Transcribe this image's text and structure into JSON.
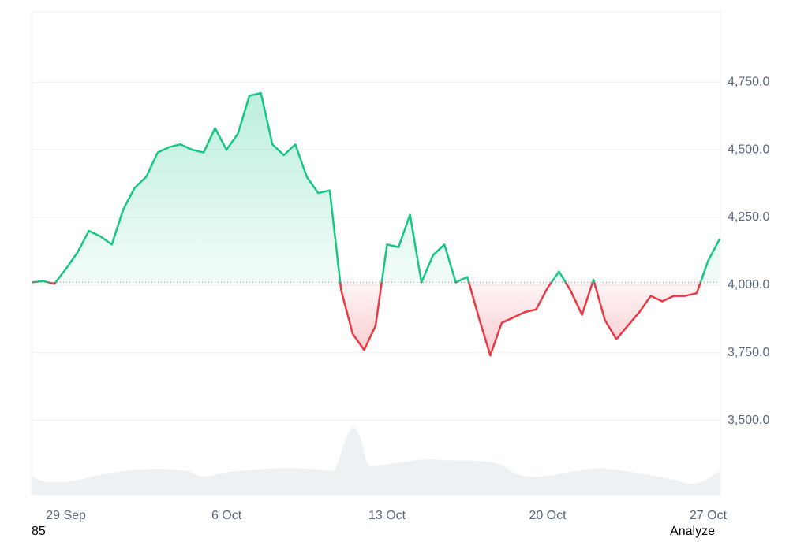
{
  "chart_data": {
    "type": "line",
    "categories": [
      null,
      null,
      null,
      "29 Sep",
      null,
      null,
      null,
      null,
      null,
      null,
      null,
      null,
      null,
      null,
      null,
      null,
      null,
      "6 Oct",
      null,
      null,
      null,
      null,
      null,
      null,
      null,
      null,
      null,
      null,
      null,
      null,
      null,
      "13 Oct",
      null,
      null,
      null,
      null,
      null,
      null,
      null,
      null,
      null,
      null,
      null,
      null,
      null,
      "20 Oct",
      null,
      null,
      null,
      null,
      null,
      null,
      null,
      null,
      null,
      null,
      null,
      null,
      null,
      "27 Oct",
      null
    ],
    "values": [
      4010,
      4015,
      4005,
      4060,
      4120,
      4200,
      4180,
      4150,
      4280,
      4360,
      4400,
      4490,
      4510,
      4520,
      4500,
      4490,
      4580,
      4500,
      4560,
      4700,
      4710,
      4520,
      4480,
      4520,
      4400,
      4340,
      4350,
      3980,
      3820,
      3760,
      3850,
      4150,
      4140,
      4260,
      4010,
      4110,
      4150,
      4010,
      4030,
      3880,
      3740,
      3860,
      3880,
      3900,
      3910,
      3990,
      4050,
      3980,
      3890,
      4020,
      3870,
      3800,
      3850,
      3900,
      3960,
      3940,
      3960,
      3960,
      3970,
      4090,
      4170
    ],
    "baseline": 4010,
    "up_color": "#16c784",
    "down_color": "#ea3943",
    "ylim": [
      3225,
      5010
    ],
    "yticks": [
      {
        "value": 3500,
        "label": "3,500.0"
      },
      {
        "value": 3750,
        "label": "3,750.0"
      },
      {
        "value": 4000,
        "label": "4,000.0"
      },
      {
        "value": 4250,
        "label": "4,250.0"
      },
      {
        "value": 4500,
        "label": "4,500.0"
      },
      {
        "value": 4750,
        "label": "4,750.0"
      }
    ],
    "grid": true
  },
  "footer": {
    "left": "85",
    "right": "Analyze"
  }
}
